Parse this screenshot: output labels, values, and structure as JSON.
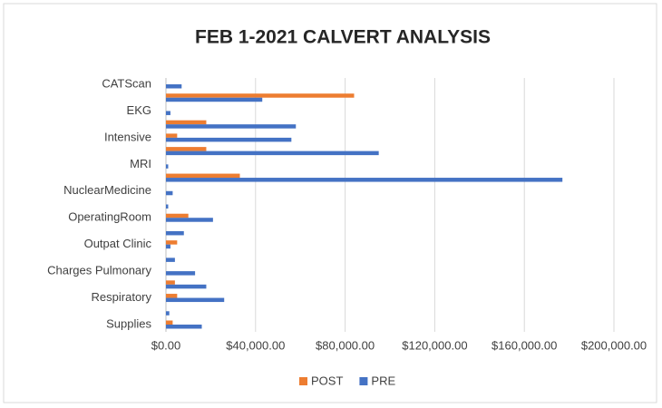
{
  "chart_data": {
    "type": "bar",
    "orientation": "horizontal",
    "title": "FEB 1-2021 CALVERT ANALYSIS",
    "categories": [
      "CATScan",
      null,
      "EKG",
      null,
      "Intensive",
      null,
      "MRI",
      null,
      "NuclearMedicine",
      null,
      "OperatingRoom",
      null,
      "Outpat Clinic",
      null,
      "Charges Pulmonary",
      null,
      "Respiratory",
      null,
      "Supplies"
    ],
    "series": [
      {
        "name": "POST",
        "color": "#ed7d31",
        "values": [
          0,
          84000,
          0,
          18000,
          5000,
          18000,
          0,
          33000,
          0,
          0,
          10000,
          0,
          5000,
          0,
          0,
          4000,
          5000,
          0,
          3000
        ]
      },
      {
        "name": "PRE",
        "color": "#4472c4",
        "values": [
          7000,
          43000,
          2000,
          58000,
          56000,
          95000,
          1000,
          177000,
          3000,
          1000,
          21000,
          8000,
          2000,
          4000,
          13000,
          18000,
          26000,
          1500,
          16000
        ]
      }
    ],
    "xlim": [
      0,
      200000
    ],
    "xticks": [
      {
        "value": 0,
        "label": "$0.00"
      },
      {
        "value": 40000,
        "label": "$40,000.00"
      },
      {
        "value": 80000,
        "label": "$80,000.00"
      },
      {
        "value": 120000,
        "label": "$120,000.00"
      },
      {
        "value": 160000,
        "label": "$160,000.00"
      },
      {
        "value": 200000,
        "label": "$200,000.00"
      }
    ],
    "grid": true,
    "legend": "bottom"
  }
}
